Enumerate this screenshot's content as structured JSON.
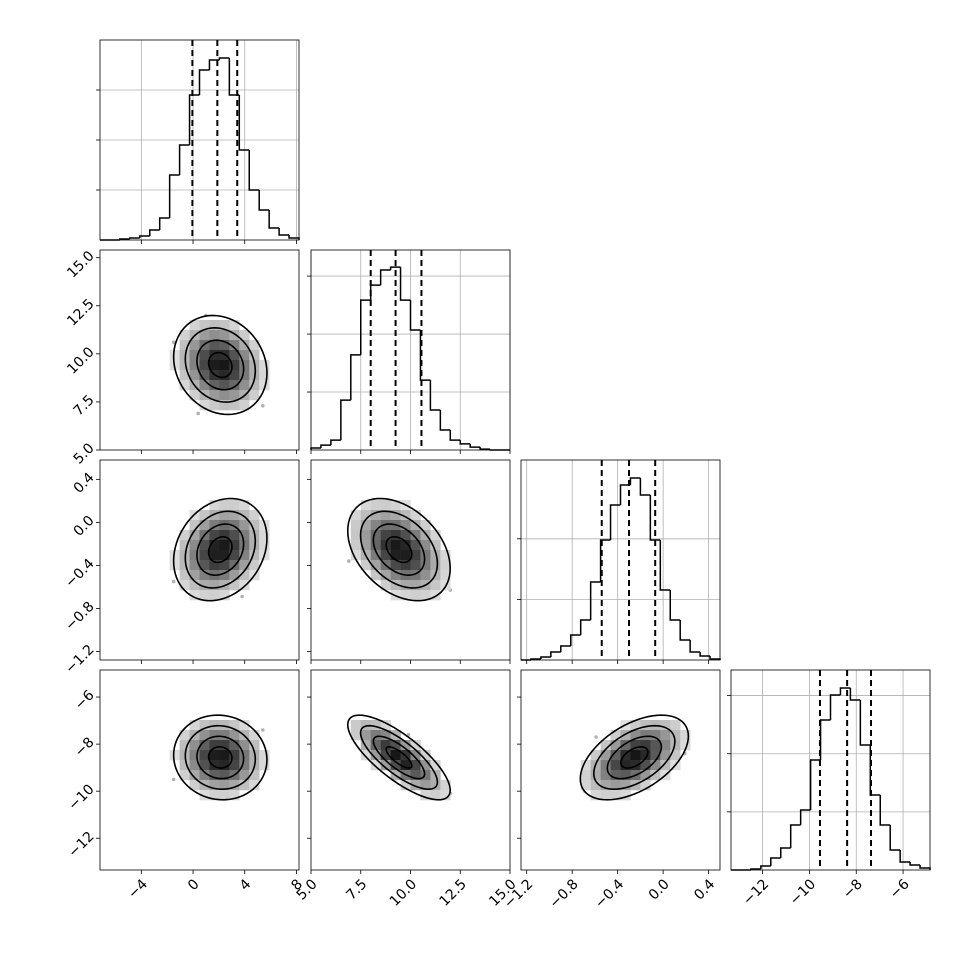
{
  "chart_data": [
    {
      "type": "histogram",
      "color": "#000000",
      "grid": true,
      "bins": [
        -7.2,
        -6.43,
        -5.66,
        -4.89,
        -4.12,
        -3.35,
        -2.58,
        -1.81,
        -1.04,
        -0.27,
        0.5,
        1.27,
        2.04,
        2.81,
        3.58,
        4.35,
        5.12,
        5.89,
        6.66,
        7.43,
        8.2
      ],
      "counts": [
        0,
        0,
        5,
        10,
        20,
        50,
        110,
        325,
        475,
        725,
        850,
        900,
        910,
        725,
        450,
        250,
        150,
        60,
        25,
        10
      ],
      "quantiles": [
        -0.05,
        1.88,
        3.42
      ],
      "xlim": [
        -7.2,
        8.2
      ],
      "ylim": [
        0,
        1000
      ],
      "xticks": [
        {
          "value": -4,
          "label": "−4"
        },
        0,
        4,
        8
      ],
      "yticks": [
        250,
        500,
        750
      ]
    },
    {
      "type": "scatter",
      "color": "#000000",
      "x": [
        2.5,
        0.1,
        3.4,
        1.4,
        4.6,
        1.8,
        3.0,
        0.7,
        2.2,
        3.8,
        -0.7,
        2.6,
        1.0,
        5.4,
        1.7,
        3.3,
        0.4,
        2.0,
        4.1,
        1.2,
        2.8,
        -1.5,
        5.0,
        -0.2
      ],
      "y": [
        8.8,
        10.4,
        9.5,
        7.7,
        10.1,
        11.4,
        8.2,
        9.7,
        9.1,
        10.7,
        8.6,
        9.4,
        12.0,
        7.3,
        10.2,
        9.0,
        6.9,
        9.9,
        8.0,
        11.0,
        9.3,
        10.6,
        9.8,
        8.5
      ],
      "xlim": [
        -7.2,
        8.2
      ],
      "ylim": [
        5,
        15.4
      ],
      "xticks": [
        {
          "value": -4,
          "label": "−4"
        },
        0,
        4,
        8
      ],
      "yticks": [
        {
          "value": 5,
          "label": "5.0"
        },
        7.5,
        {
          "value": 10,
          "label": "10.0"
        },
        12.5,
        {
          "value": 15,
          "label": "15.0"
        }
      ]
    },
    {
      "type": "histogram",
      "color": "#000000",
      "grid": true,
      "bins": [
        5,
        5.5,
        6,
        6.5,
        7,
        7.5,
        8,
        8.5,
        9,
        9.5,
        10,
        10.5,
        11,
        11.5,
        12,
        12.5,
        13,
        13.5,
        14,
        14.5,
        15
      ],
      "counts": [
        7,
        17,
        34,
        172,
        328,
        517,
        569,
        621,
        631,
        517,
        414,
        241,
        138,
        69,
        34,
        21,
        10,
        3,
        0,
        0
      ],
      "quantiles": [
        8.0,
        9.25,
        10.55
      ],
      "xlim": [
        5,
        15
      ],
      "ylim": [
        0,
        690
      ],
      "xticks": [
        {
          "value": 5,
          "label": "5.0"
        },
        7.5,
        {
          "value": 10,
          "label": "10.0"
        },
        12.5,
        {
          "value": 15,
          "label": "15.0"
        }
      ],
      "yticks": [
        200,
        400,
        600
      ]
    },
    {
      "type": "scatter",
      "color": "#000000",
      "x": [
        2.5,
        0.1,
        3.4,
        1.4,
        4.6,
        1.8,
        3.0,
        0.7,
        2.2,
        3.8,
        -0.7,
        2.6,
        1.0,
        5.4,
        1.7,
        3.3,
        0.4,
        2.0,
        4.1,
        1.2,
        2.8,
        -1.5,
        5.0,
        -0.2
      ],
      "y": [
        0.01,
        -0.4,
        -0.51,
        -0.05,
        -0.15,
        -0.38,
        -0.31,
        0.03,
        -0.28,
        -0.69,
        -0.07,
        -0.22,
        -0.63,
        -0.11,
        0.08,
        -0.32,
        -0.36,
        -0.1,
        -0.09,
        -0.4,
        0.19,
        -0.55,
        -0.18,
        -0.59
      ],
      "xlim": [
        -7.2,
        8.2
      ],
      "ylim": [
        -1.28,
        0.58
      ],
      "xticks": [
        {
          "value": -4,
          "label": "−4"
        },
        0,
        4,
        8
      ],
      "yticks": [
        {
          "value": -1.2,
          "label": "−1.2"
        },
        {
          "value": -0.8,
          "label": "−0.8"
        },
        {
          "value": -0.4,
          "label": "−0.4"
        },
        {
          "value": 0,
          "label": "0.0"
        },
        0.4
      ]
    },
    {
      "type": "scatter",
      "color": "#000000",
      "x": [
        8.8,
        10.4,
        9.5,
        7.7,
        10.1,
        11.4,
        8.2,
        9.7,
        9.1,
        10.7,
        8.6,
        9.4,
        12.0,
        7.3,
        10.2,
        9.0,
        6.9,
        9.9,
        8.0,
        11.0,
        9.3,
        10.6,
        9.8,
        8.5
      ],
      "y": [
        0.01,
        -0.4,
        -0.51,
        -0.05,
        -0.15,
        -0.38,
        -0.31,
        0.03,
        -0.28,
        -0.69,
        -0.07,
        -0.22,
        -0.63,
        -0.11,
        0.08,
        -0.32,
        -0.36,
        -0.1,
        -0.09,
        -0.4,
        0.19,
        -0.55,
        -0.18,
        -0.59
      ],
      "xlim": [
        5,
        15
      ],
      "ylim": [
        -1.28,
        0.58
      ],
      "xticks": [
        {
          "value": 5,
          "label": "5.0"
        },
        7.5,
        {
          "value": 10,
          "label": "10.0"
        },
        12.5,
        {
          "value": 15,
          "label": "15.0"
        }
      ],
      "yticks": [
        {
          "value": -1.2,
          "label": "−1.2"
        },
        {
          "value": -0.8,
          "label": "−0.8"
        },
        {
          "value": -0.4,
          "label": "−0.4"
        },
        {
          "value": 0,
          "label": "0.0"
        },
        0.4
      ]
    },
    {
      "type": "histogram",
      "color": "#000000",
      "grid": true,
      "bins": [
        -1.25,
        -1.1625,
        -1.075,
        -0.9875,
        -0.9,
        -0.8125,
        -0.725,
        -0.6375,
        -0.55,
        -0.4625,
        -0.375,
        -0.2875,
        -0.2,
        -0.1125,
        -0.025,
        0.0625,
        0.15,
        0.2375,
        0.325,
        0.4125,
        0.5
      ],
      "counts": [
        0,
        8,
        25,
        66,
        116,
        206,
        330,
        644,
        990,
        1279,
        1444,
        1502,
        1361,
        990,
        578,
        330,
        165,
        66,
        33,
        8
      ],
      "quantiles": [
        -0.54,
        -0.3,
        -0.07
      ],
      "xlim": [
        -1.25,
        0.5
      ],
      "ylim": [
        0,
        1650
      ],
      "xticks": [
        {
          "value": -1.2,
          "label": "−1.2"
        },
        {
          "value": -0.8,
          "label": "−0.8"
        },
        {
          "value": -0.4,
          "label": "−0.4"
        },
        {
          "value": 0,
          "label": "0.0"
        },
        0.4
      ],
      "yticks": [
        500,
        1000
      ]
    },
    {
      "type": "scatter",
      "color": "#000000",
      "x": [
        2.5,
        0.1,
        3.4,
        1.4,
        4.6,
        1.8,
        3.0,
        0.7,
        2.2,
        3.8,
        -0.7,
        2.6,
        1.0,
        5.4,
        1.7,
        3.3,
        0.4,
        2.0,
        4.1,
        1.2,
        2.8,
        -1.5,
        5.0,
        -0.2
      ],
      "y": [
        -7.9,
        -9.7,
        -8.6,
        -6.9,
        -9.0,
        -9.3,
        -8.7,
        -8.5,
        -7.6,
        -10.0,
        -7.8,
        -9.4,
        -10.1,
        -7.4,
        -8.2,
        -8.9,
        -7.3,
        -7.6,
        -8.6,
        -9.2,
        -8.4,
        -9.5,
        -9.3,
        -7.7
      ],
      "xlim": [
        -7.2,
        8.2
      ],
      "ylim": [
        -13.35,
        -4.85
      ],
      "xticks": [
        {
          "value": -4,
          "label": "−4"
        },
        0,
        4,
        8
      ],
      "yticks": [
        {
          "value": -12,
          "label": "−12"
        },
        {
          "value": -10,
          "label": "−10"
        },
        {
          "value": -8,
          "label": "−8"
        },
        {
          "value": -6,
          "label": "−6"
        }
      ]
    },
    {
      "type": "scatter",
      "color": "#000000",
      "x": [
        8.8,
        10.4,
        9.5,
        7.7,
        10.1,
        11.4,
        8.2,
        9.7,
        9.1,
        10.7,
        8.6,
        9.4,
        12.0,
        7.3,
        10.2,
        9.0,
        6.9,
        9.9,
        8.0,
        11.0,
        9.3,
        10.6,
        9.8,
        8.5
      ],
      "y": [
        -7.9,
        -9.7,
        -8.6,
        -6.9,
        -9.0,
        -9.3,
        -8.7,
        -8.5,
        -7.6,
        -10.0,
        -7.8,
        -9.4,
        -10.1,
        -7.4,
        -8.2,
        -8.9,
        -7.3,
        -7.6,
        -8.6,
        -9.2,
        -8.4,
        -9.5,
        -9.3,
        -7.7
      ],
      "xlim": [
        5,
        15
      ],
      "ylim": [
        -13.35,
        -4.85
      ],
      "xticks": [
        {
          "value": 5,
          "label": "5.0"
        },
        7.5,
        {
          "value": 10,
          "label": "10.0"
        },
        12.5,
        {
          "value": 15,
          "label": "15.0"
        }
      ],
      "yticks": [
        {
          "value": -12,
          "label": "−12"
        },
        {
          "value": -10,
          "label": "−10"
        },
        {
          "value": -8,
          "label": "−8"
        },
        {
          "value": -6,
          "label": "−6"
        }
      ]
    },
    {
      "type": "scatter",
      "color": "#000000",
      "x": [
        0.01,
        -0.4,
        -0.51,
        -0.05,
        -0.15,
        -0.38,
        -0.31,
        0.03,
        -0.28,
        -0.69,
        -0.07,
        -0.22,
        -0.63,
        -0.11,
        0.08,
        -0.32,
        -0.36,
        -0.1,
        -0.09,
        -0.4,
        0.19,
        -0.55,
        -0.18,
        -0.59
      ],
      "y": [
        -7.9,
        -9.7,
        -8.6,
        -6.9,
        -9.0,
        -9.3,
        -8.7,
        -8.5,
        -7.6,
        -10.0,
        -7.8,
        -9.4,
        -10.1,
        -7.4,
        -8.2,
        -8.9,
        -7.3,
        -7.6,
        -8.6,
        -9.2,
        -8.4,
        -9.5,
        -9.3,
        -7.7
      ],
      "xlim": [
        -1.25,
        0.5
      ],
      "ylim": [
        -13.35,
        -4.85
      ],
      "xticks": [
        {
          "value": -1.2,
          "label": "−1.2"
        },
        {
          "value": -0.8,
          "label": "−0.8"
        },
        {
          "value": -0.4,
          "label": "−0.4"
        },
        {
          "value": 0,
          "label": "0.0"
        },
        0.4
      ],
      "yticks": [
        {
          "value": -12,
          "label": "−12"
        },
        {
          "value": -10,
          "label": "−10"
        },
        {
          "value": -8,
          "label": "−8"
        },
        {
          "value": -6,
          "label": "−6"
        }
      ]
    },
    {
      "type": "histogram",
      "color": "#000000",
      "grid": true,
      "bins": [
        -13.35,
        -12.925,
        -12.5,
        -12.075,
        -11.65,
        -11.225,
        -10.8,
        -10.375,
        -9.95,
        -9.525,
        -9.1,
        -8.675,
        -8.25,
        -7.825,
        -7.4,
        -6.975,
        -6.55,
        -6.125,
        -5.7,
        -5.275,
        -4.85
      ],
      "counts": [
        0,
        0,
        9,
        34,
        103,
        189,
        387,
        516,
        946,
        1290,
        1505,
        1565,
        1462,
        1075,
        645,
        387,
        172,
        69,
        43,
        17
      ],
      "quantiles": [
        -9.55,
        -8.39,
        -7.37
      ],
      "xlim": [
        -13.35,
        -4.85
      ],
      "ylim": [
        0,
        1720
      ],
      "xticks": [
        {
          "value": -12,
          "label": "−12"
        },
        {
          "value": -10,
          "label": "−10"
        },
        {
          "value": -8,
          "label": "−8"
        },
        {
          "value": -6,
          "label": "−6"
        }
      ],
      "yticks": [
        500,
        1000,
        1500
      ]
    }
  ]
}
